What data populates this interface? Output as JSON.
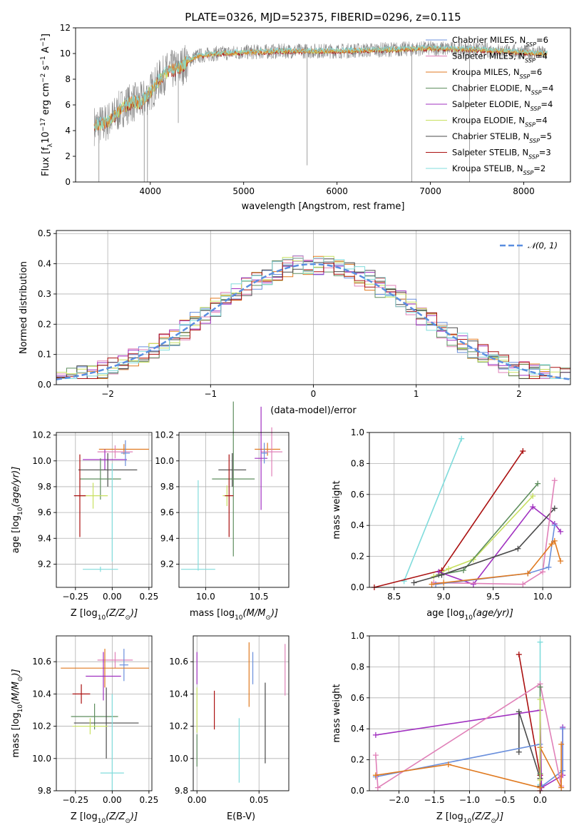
{
  "colors": {
    "chabrier_miles": "#6a8fdc",
    "salpeter_miles": "#e080b8",
    "kroupa_miles": "#e07a20",
    "chabrier_elodie": "#5e8e5e",
    "salpeter_elodie": "#a030c0",
    "kroupa_elodie": "#c8e060",
    "chabrier_stelib": "#4a4a4a",
    "salpeter_stelib": "#aa1010",
    "kroupa_stelib": "#80dcdc",
    "observed": "#888888",
    "normal": "#5a8ee0"
  },
  "chart_data": [
    {
      "id": "spectrum",
      "type": "line",
      "title": "PLATE=0326, MJD=52375, FIBERID=0296, z=0.115",
      "xlabel": "wavelength [Angstrom, rest frame]",
      "ylabel": "Flux [f",
      "ylabel_parts": [
        "Flux [f",
        "λ",
        "10",
        "−17",
        " erg cm",
        "−2",
        " s",
        "−1",
        " A",
        "−1",
        "]"
      ],
      "xlim": [
        3200,
        8500
      ],
      "ylim": [
        0,
        12
      ],
      "xticks": [
        4000,
        5000,
        6000,
        7000,
        8000
      ],
      "yticks": [
        0,
        2,
        4,
        6,
        8,
        10,
        12
      ],
      "legend_location": "right",
      "legend": [
        {
          "prefix": "Chabrier MILES, N",
          "sub": "SSP",
          "suffix": "=6",
          "color": "chabrier_miles"
        },
        {
          "prefix": "Salpeter MILES, N",
          "sub": "SSP",
          "suffix": "=4",
          "color": "salpeter_miles"
        },
        {
          "prefix": "Kroupa MILES, N",
          "sub": "SSP",
          "suffix": "=6",
          "color": "kroupa_miles"
        },
        {
          "prefix": "Chabrier ELODIE, N",
          "sub": "SSP",
          "suffix": "=4",
          "color": "chabrier_elodie"
        },
        {
          "prefix": "Salpeter ELODIE, N",
          "sub": "SSP",
          "suffix": "=4",
          "color": "salpeter_elodie"
        },
        {
          "prefix": "Kroupa ELODIE, N",
          "sub": "SSP",
          "suffix": "=4",
          "color": "kroupa_elodie"
        },
        {
          "prefix": "Chabrier STELIB, N",
          "sub": "SSP",
          "suffix": "=5",
          "color": "chabrier_stelib"
        },
        {
          "prefix": "Salpeter STELIB, N",
          "sub": "SSP",
          "suffix": "=3",
          "color": "salpeter_stelib"
        },
        {
          "prefix": "Kroupa STELIB, N",
          "sub": "SSP",
          "suffix": "=2",
          "color": "kroupa_stelib"
        }
      ],
      "continuum": {
        "x": [
          3400,
          3500,
          3600,
          3700,
          3800,
          3900,
          4000,
          4100,
          4200,
          4300,
          4400,
          4500,
          4700,
          5000,
          5500,
          6000,
          6500,
          7000,
          7500,
          8000,
          8250
        ],
        "y": [
          4.4,
          4.5,
          5.0,
          5.8,
          6.2,
          6.2,
          7.0,
          8.0,
          8.7,
          8.8,
          9.4,
          9.8,
          10.0,
          10.1,
          10.2,
          10.2,
          10.3,
          10.4,
          10.3,
          10.1,
          10.0
        ]
      },
      "absorption_lines": [
        {
          "x": 3450,
          "y": 0
        },
        {
          "x": 3935,
          "y": 0
        },
        {
          "x": 3970,
          "y": 0
        },
        {
          "x": 4300,
          "y": 4.6
        },
        {
          "x": 5680,
          "y": 1.3
        },
        {
          "x": 6800,
          "y": 0
        },
        {
          "x": 7420,
          "y": 0
        }
      ]
    },
    {
      "id": "residuals",
      "type": "line",
      "xlabel": "(data-model)/error",
      "ylabel": "Normed distribution",
      "xlim": [
        -2.5,
        2.5
      ],
      "ylim": [
        0,
        0.51
      ],
      "xticks": [
        -2,
        -1,
        0,
        1,
        2
      ],
      "yticks": [
        0.0,
        0.1,
        0.2,
        0.3,
        0.4,
        0.5
      ],
      "grid": true,
      "legend_location": "top-right",
      "series": [
        {
          "name": "𝒩(0, 1)",
          "style": "dashed",
          "color": "normal",
          "mu": 0,
          "sigma": 1
        }
      ]
    },
    {
      "id": "age_vs_Z",
      "type": "scatter",
      "xlabel": "Z [log",
      "xlabel_parts": [
        "Z [log",
        "10",
        "(Z/Z",
        "⊙",
        ")]"
      ],
      "ylabel_parts": [
        "age  [log",
        "10",
        "(age/yr)]"
      ],
      "xlim": [
        -0.38,
        0.27
      ],
      "ylim": [
        9.02,
        10.22
      ],
      "xticks": [
        -0.25,
        0.0,
        0.25
      ],
      "yticks": [
        9.2,
        9.4,
        9.6,
        9.8,
        10.0,
        10.2
      ],
      "grid": true,
      "points": [
        {
          "x": 0.08,
          "y": 10.09,
          "xerr": 0.17,
          "yerr": 0.04,
          "color": "kroupa_miles"
        },
        {
          "x": 0.02,
          "y": 10.07,
          "xerr": 0.12,
          "yerr": 0.05,
          "color": "salpeter_miles"
        },
        {
          "x": -0.05,
          "y": 10.01,
          "xerr": 0.15,
          "yerr": 0.08,
          "color": "salpeter_elodie"
        },
        {
          "x": 0.09,
          "y": 10.06,
          "xerr": 0.03,
          "yerr": 0.1,
          "color": "chabrier_miles"
        },
        {
          "x": -0.03,
          "y": 9.93,
          "xerr": 0.2,
          "yerr": 0.13,
          "color": "chabrier_stelib"
        },
        {
          "x": -0.08,
          "y": 9.86,
          "xerr": 0.14,
          "yerr": 0.16,
          "color": "chabrier_elodie"
        },
        {
          "x": -0.13,
          "y": 9.73,
          "xerr": 0.1,
          "yerr": 0.1,
          "color": "kroupa_elodie"
        },
        {
          "x": -0.22,
          "y": 9.73,
          "xerr": 0.04,
          "yerr": 0.32,
          "color": "salpeter_stelib"
        },
        {
          "x": -0.08,
          "y": 9.16,
          "xerr": 0.12,
          "yerr": 0.02,
          "color": "kroupa_stelib"
        },
        {
          "x": 0.0,
          "y": 9.6,
          "xerr": 0.0,
          "yerr": 0.38,
          "color": "kroupa_stelib"
        }
      ]
    },
    {
      "id": "age_vs_mass",
      "type": "scatter",
      "xlabel_parts": [
        "mass [log",
        "10",
        "(M/M",
        "⊙",
        ")]"
      ],
      "xlim": [
        9.75,
        10.78
      ],
      "ylim": [
        9.02,
        10.22
      ],
      "xticks": [
        10.0,
        10.5
      ],
      "yticks": [
        9.2,
        9.4,
        9.6,
        9.8,
        10.0,
        10.2
      ],
      "grid": true,
      "points": [
        {
          "x": 10.58,
          "y": 10.09,
          "xerr": 0.12,
          "yerr": 0.05,
          "color": "kroupa_miles"
        },
        {
          "x": 10.62,
          "y": 10.07,
          "xerr": 0.1,
          "yerr": 0.19,
          "color": "salpeter_miles"
        },
        {
          "x": 10.52,
          "y": 10.02,
          "xerr": 0.06,
          "yerr": 0.4,
          "color": "salpeter_elodie"
        },
        {
          "x": 10.55,
          "y": 10.06,
          "xerr": 0.03,
          "yerr": 0.08,
          "color": "chabrier_miles"
        },
        {
          "x": 10.25,
          "y": 9.93,
          "xerr": 0.13,
          "yerr": 0.13,
          "color": "chabrier_stelib"
        },
        {
          "x": 10.26,
          "y": 9.86,
          "xerr": 0.2,
          "yerr": 0.6,
          "color": "chabrier_elodie"
        },
        {
          "x": 10.2,
          "y": 9.73,
          "xerr": 0.04,
          "yerr": 0.08,
          "color": "kroupa_elodie"
        },
        {
          "x": 10.22,
          "y": 9.73,
          "xerr": 0.04,
          "yerr": 0.32,
          "color": "salpeter_stelib"
        },
        {
          "x": 9.93,
          "y": 9.16,
          "xerr": 0.16,
          "yerr": 0.0,
          "color": "kroupa_stelib"
        },
        {
          "x": 9.93,
          "y": 9.5,
          "xerr": 0.0,
          "yerr": 0.35,
          "color": "kroupa_stelib"
        }
      ]
    },
    {
      "id": "weight_vs_age",
      "type": "line",
      "xlabel_parts": [
        "age  [log",
        "10",
        "(age/yr)]"
      ],
      "ylabel": "mass weight",
      "xlim": [
        8.25,
        10.28
      ],
      "ylim": [
        0,
        1.0
      ],
      "xticks": [
        8.5,
        9.0,
        9.5,
        10.0
      ],
      "yticks": [
        0.0,
        0.2,
        0.4,
        0.6,
        0.8,
        1.0
      ],
      "grid": true,
      "series": [
        {
          "color": "kroupa_stelib",
          "x": [
            8.6,
            9.18
          ],
          "y": [
            0.04,
            0.96
          ]
        },
        {
          "color": "salpeter_stelib",
          "x": [
            8.3,
            8.98,
            9.8
          ],
          "y": [
            0.0,
            0.11,
            0.88
          ]
        },
        {
          "color": "kroupa_elodie",
          "x": [
            8.9,
            9.05,
            9.3,
            9.9
          ],
          "y": [
            0.07,
            0.12,
            0.18,
            0.59
          ]
        },
        {
          "color": "chabrier_elodie",
          "x": [
            8.95,
            9.2,
            9.95
          ],
          "y": [
            0.08,
            0.11,
            0.67
          ]
        },
        {
          "color": "salpeter_elodie",
          "x": [
            8.95,
            9.3,
            9.9,
            10.12,
            10.18
          ],
          "y": [
            0.1,
            0.02,
            0.52,
            0.41,
            0.36
          ]
        },
        {
          "color": "chabrier_stelib",
          "x": [
            8.7,
            8.98,
            9.75,
            10.12
          ],
          "y": [
            0.03,
            0.08,
            0.25,
            0.51
          ]
        },
        {
          "color": "salpeter_miles",
          "x": [
            8.9,
            9.8,
            10.0,
            10.12
          ],
          "y": [
            0.03,
            0.02,
            0.1,
            0.69
          ]
        },
        {
          "color": "chabrier_miles",
          "x": [
            8.92,
            9.85,
            10.06,
            10.12
          ],
          "y": [
            0.02,
            0.09,
            0.13,
            0.4
          ]
        },
        {
          "color": "kroupa_miles",
          "x": [
            8.88,
            9.0,
            9.85,
            10.09,
            10.12,
            10.18
          ],
          "y": [
            0.02,
            0.03,
            0.09,
            0.28,
            0.3,
            0.17
          ]
        }
      ]
    },
    {
      "id": "mass_vs_Z",
      "type": "scatter",
      "xlabel_parts": [
        "Z [log",
        "10",
        "(Z/Z",
        "⊙",
        ")]"
      ],
      "ylabel_parts": [
        "mass [log",
        "10",
        "(M/M",
        "⊙",
        ")]"
      ],
      "xlim": [
        -0.38,
        0.27
      ],
      "ylim": [
        9.8,
        10.76
      ],
      "xticks": [
        -0.25,
        0.0,
        0.25
      ],
      "yticks": [
        9.8,
        10.0,
        10.2,
        10.4,
        10.6
      ],
      "grid": true,
      "points": [
        {
          "x": 0.02,
          "y": 10.61,
          "xerr": 0.12,
          "yerr": 0.05,
          "color": "salpeter_miles"
        },
        {
          "x": 0.08,
          "y": 10.58,
          "xerr": 0.03,
          "yerr": 0.1,
          "color": "chabrier_miles"
        },
        {
          "x": -0.05,
          "y": 10.56,
          "xerr": 0.3,
          "yerr": 0.12,
          "color": "kroupa_miles"
        },
        {
          "x": -0.06,
          "y": 10.51,
          "xerr": 0.12,
          "yerr": 0.15,
          "color": "salpeter_elodie"
        },
        {
          "x": -0.21,
          "y": 10.4,
          "xerr": 0.06,
          "yerr": 0.06,
          "color": "salpeter_stelib"
        },
        {
          "x": -0.12,
          "y": 10.26,
          "xerr": 0.16,
          "yerr": 0.08,
          "color": "chabrier_elodie"
        },
        {
          "x": -0.04,
          "y": 10.22,
          "xerr": 0.22,
          "yerr": 0.22,
          "color": "chabrier_stelib"
        },
        {
          "x": -0.15,
          "y": 10.2,
          "xerr": 0.12,
          "yerr": 0.05,
          "color": "kroupa_elodie"
        },
        {
          "x": 0.0,
          "y": 9.91,
          "xerr": 0.08,
          "yerr": 0.0,
          "color": "kroupa_stelib"
        },
        {
          "x": 0.0,
          "y": 10.1,
          "xerr": 0.0,
          "yerr": 0.3,
          "color": "kroupa_stelib"
        }
      ]
    },
    {
      "id": "mass_vs_EBV",
      "type": "scatter",
      "xlabel": "E(B-V)",
      "xlim": [
        -0.003,
        0.074
      ],
      "ylim": [
        9.8,
        10.76
      ],
      "xticks": [
        0.0,
        0.05
      ],
      "xtick_labels": [
        "0.00",
        "0.05"
      ],
      "yticks": [
        9.8,
        10.0,
        10.2,
        10.4,
        10.6
      ],
      "grid": true,
      "points": [
        {
          "x": 0.0,
          "y": 10.56,
          "yerr": 0.1,
          "color": "salpeter_elodie"
        },
        {
          "x": 0.0,
          "y": 10.3,
          "yerr": 0.14,
          "color": "kroupa_elodie"
        },
        {
          "x": 0.0,
          "y": 10.05,
          "yerr": 0.1,
          "color": "chabrier_elodie"
        },
        {
          "x": 0.014,
          "y": 10.3,
          "yerr": 0.12,
          "color": "salpeter_stelib"
        },
        {
          "x": 0.034,
          "y": 10.05,
          "yerr": 0.2,
          "color": "kroupa_stelib"
        },
        {
          "x": 0.042,
          "y": 10.52,
          "yerr": 0.2,
          "color": "kroupa_miles"
        },
        {
          "x": 0.045,
          "y": 10.56,
          "yerr": 0.1,
          "color": "chabrier_miles"
        },
        {
          "x": 0.055,
          "y": 10.22,
          "yerr": 0.25,
          "color": "chabrier_stelib"
        },
        {
          "x": 0.071,
          "y": 10.55,
          "yerr": 0.16,
          "color": "salpeter_miles"
        }
      ]
    },
    {
      "id": "weight_vs_Z",
      "type": "line",
      "xlabel_parts": [
        "Z [log",
        "10",
        "(Z/Z",
        "⊙",
        ")]"
      ],
      "ylabel": "mass weight",
      "xlim": [
        -2.42,
        0.43
      ],
      "ylim": [
        0,
        1.0
      ],
      "xticks": [
        -2.0,
        -1.5,
        -1.0,
        -0.5,
        0.0
      ],
      "yticks": [
        0.0,
        0.2,
        0.4,
        0.6,
        0.8,
        1.0
      ],
      "grid": true,
      "series": [
        {
          "color": "salpeter_stelib",
          "x": [
            -0.3,
            0.0,
            0.0
          ],
          "y": [
            0.88,
            0.1,
            0.0
          ]
        },
        {
          "color": "kroupa_stelib",
          "x": [
            0.0,
            0.0
          ],
          "y": [
            0.04,
            0.96
          ]
        },
        {
          "color": "salpeter_elodie",
          "x": [
            -2.33,
            0.0,
            0.02,
            0.32,
            0.32
          ],
          "y": [
            0.36,
            0.52,
            0.02,
            0.1,
            0.41
          ]
        },
        {
          "color": "chabrier_stelib",
          "x": [
            -0.3,
            -0.3,
            0.0,
            0.0
          ],
          "y": [
            0.25,
            0.51,
            0.08,
            0.03
          ]
        },
        {
          "color": "chabrier_miles",
          "x": [
            -2.33,
            0.0,
            0.0,
            0.32,
            0.32
          ],
          "y": [
            0.09,
            0.3,
            0.02,
            0.13,
            0.4
          ]
        },
        {
          "color": "salpeter_miles",
          "x": [
            -2.33,
            -2.3,
            0.0,
            0.3,
            0.3
          ],
          "y": [
            0.23,
            0.02,
            0.69,
            0.03,
            0.1
          ]
        },
        {
          "color": "kroupa_miles",
          "x": [
            -2.33,
            -1.3,
            0.0,
            0.0,
            0.3,
            0.3
          ],
          "y": [
            0.1,
            0.17,
            0.02,
            0.28,
            0.02,
            0.3
          ]
        },
        {
          "color": "chabrier_elodie",
          "x": [
            0.0,
            0.0
          ],
          "y": [
            0.11,
            0.67
          ]
        },
        {
          "color": "kroupa_elodie",
          "x": [
            0.0,
            0.0
          ],
          "y": [
            0.07,
            0.59
          ]
        }
      ]
    }
  ]
}
